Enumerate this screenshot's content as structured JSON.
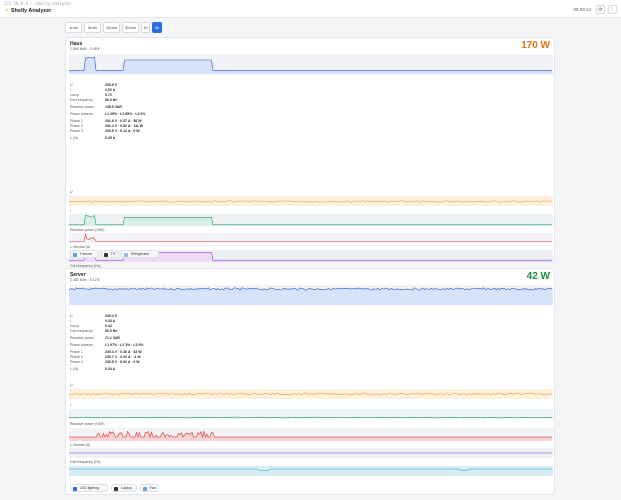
{
  "topbar": {
    "address": "172.16.0.4 — shelly-analyzer",
    "title": "Shelly Analyzer",
    "clock": "09:29:14",
    "refresh_icon": "refresh-icon",
    "theme_icon": "moon-icon"
  },
  "tabs": [
    {
      "label": "1min",
      "active": false
    },
    {
      "label": "5min",
      "active": false
    },
    {
      "label": "15min",
      "active": false
    },
    {
      "label": "30min",
      "active": false
    },
    {
      "label": "1h",
      "active": false
    },
    {
      "label": "2h",
      "active": true
    }
  ],
  "devices": [
    {
      "name": "Haus",
      "summary": "1.869 kWh · 0.48 €",
      "power": "170 W",
      "power_color": "#e8730c",
      "specs": [
        {
          "k": "U",
          "v": "230.9 V"
        },
        {
          "k": "I",
          "v": "1.02 A"
        },
        {
          "k": "cos φ",
          "v": "0.72"
        },
        {
          "k": "Grid frequency",
          "v": "50.0 Hz"
        },
        {
          "k": "Reactive power",
          "v": "145.9 VAR"
        },
        {
          "k": "Phase balance",
          "v": "L1 35% · L2 65% · L3 0%"
        },
        {
          "k": "Phase 1",
          "v": "231.6 V · 0.37 A · 58 W"
        },
        {
          "k": "Phase 2",
          "v": "231.4 V · 0.52 A · 111 W"
        },
        {
          "k": "Phase 3",
          "v": "230.5 V · 0.12 A · 0 W"
        },
        {
          "k": "Iₙ (N)",
          "v": "0.35 A"
        }
      ],
      "panel_labels": [
        "U",
        "I",
        "Reactive power (VAR)",
        "Iₙ Neutral (A)",
        "Grid frequency (Hz)"
      ],
      "legend": [
        {
          "label": "Freezer",
          "icon": "snowflake-icon",
          "color": "#5aa0e6"
        },
        {
          "label": "TV",
          "icon": "tv-icon",
          "color": "#333333"
        },
        {
          "label": "Refrigerator",
          "icon": "fridge-icon",
          "color": "#8fb8e8"
        }
      ]
    },
    {
      "name": "Server",
      "summary": "2.383 kWh · 0.12 €",
      "power": "42 W",
      "power_color": "#1e8e3e",
      "specs": [
        {
          "k": "U",
          "v": "230.4 V"
        },
        {
          "k": "I",
          "v": "0.43 A"
        },
        {
          "k": "cos φ",
          "v": "0.42"
        },
        {
          "k": "Grid frequency",
          "v": "50.0 Hz"
        },
        {
          "k": "Reactive power",
          "v": "71.1 VAR"
        },
        {
          "k": "Phase balance",
          "v": "L1 97% · L2 3% · L3 0%"
        },
        {
          "k": "Phase 1",
          "v": "230.3 V · 0.36 A · 43 W"
        },
        {
          "k": "Phase 2",
          "v": "230.7 V · 0.02 A · -1 W"
        },
        {
          "k": "Phase 3",
          "v": "230.5 V · 0.00 A · 0 W"
        },
        {
          "k": "Iₙ (N)",
          "v": "0.34 A"
        }
      ],
      "panel_labels": [
        "U",
        "I",
        "Reactive power (VAR)",
        "Iₙ Neutral (A)",
        "Grid frequency (Hz)"
      ],
      "legend": [
        {
          "label": "LED lighting",
          "icon": "bulb-icon",
          "color": "#2a6de0"
        },
        {
          "label": "Laptop",
          "icon": "laptop-icon",
          "color": "#333333"
        },
        {
          "label": "Fan",
          "icon": "fan-icon",
          "color": "#5aa0e6"
        }
      ]
    }
  ],
  "colors": {
    "power_line": "#2f55c8",
    "power_fill": "#d7e2fb",
    "voltage": "#e8a040",
    "current": "#1f9d6e",
    "reactive": "#e03030",
    "neutral": "#8b3fd6",
    "frequency": "#2aa7c8"
  }
}
